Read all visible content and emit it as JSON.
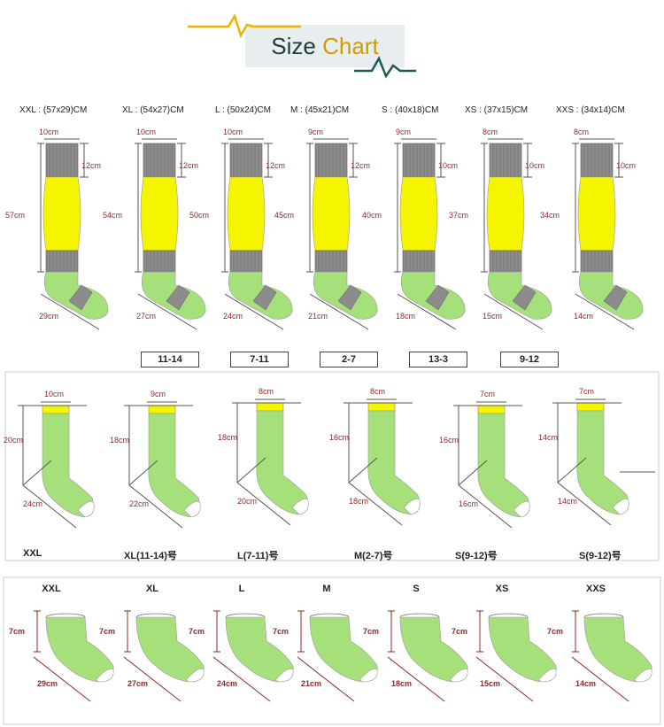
{
  "header": {
    "title_part1": "Size ",
    "title_part2": "Chart"
  },
  "colors": {
    "cuff": "#8c8c8c",
    "leg": "#f5f500",
    "foot": "#a6e07a",
    "dim": "#8b2a2a",
    "accent": "#f0b400",
    "teal": "#1e5a55"
  },
  "knee_socks": [
    {
      "label": "XXL : (57x29)CM",
      "cuff": "10cm",
      "cuff_h": "12cm",
      "height": "57cm",
      "foot": "29cm"
    },
    {
      "label": "XL : (54x27)CM",
      "cuff": "10cm",
      "cuff_h": "12cm",
      "height": "54cm",
      "foot": "27cm"
    },
    {
      "label": "L : (50x24)CM",
      "cuff": "10cm",
      "cuff_h": "12cm",
      "height": "50cm",
      "foot": "24cm"
    },
    {
      "label": "M : (45x21)CM",
      "cuff": "9cm",
      "cuff_h": "12cm",
      "height": "45cm",
      "foot": "21cm"
    },
    {
      "label": "S : (40x18)CM",
      "cuff": "9cm",
      "cuff_h": "10cm",
      "height": "40cm",
      "foot": "18cm"
    },
    {
      "label": "XS : (37x15)CM",
      "cuff": "8cm",
      "cuff_h": "10cm",
      "height": "37cm",
      "foot": "15cm"
    },
    {
      "label": "XXS : (34x14)CM",
      "cuff": "8cm",
      "cuff_h": "10cm",
      "height": "34cm",
      "foot": "14cm"
    }
  ],
  "age_boxes": [
    "11-14",
    "7-11",
    "2-7",
    "13-3",
    "9-12"
  ],
  "crew_socks": [
    {
      "label": "XXL",
      "cuff": "10cm",
      "height": "20cm",
      "foot": "24cm"
    },
    {
      "label": "XL(11-14)号",
      "cuff": "9cm",
      "height": "18cm",
      "foot": "22cm"
    },
    {
      "label": "L(7-11)号",
      "cuff": "8cm",
      "height": "18cm",
      "foot": "20cm"
    },
    {
      "label": "M(2-7)号",
      "cuff": "8cm",
      "height": "16cm",
      "foot": "18cm"
    },
    {
      "label": "S(9-12)号",
      "cuff": "7cm",
      "height": "16cm",
      "foot": "16cm"
    },
    {
      "label": "S(9-12)号",
      "cuff": "7cm",
      "height": "14cm",
      "foot": "14cm"
    }
  ],
  "ankle_socks": [
    {
      "label": "XXL",
      "height": "7cm",
      "foot": "29cm"
    },
    {
      "label": "XL",
      "height": "7cm",
      "foot": "27cm"
    },
    {
      "label": "L",
      "height": "7cm",
      "foot": "24cm"
    },
    {
      "label": "M",
      "height": "7cm",
      "foot": "21cm"
    },
    {
      "label": "S",
      "height": "7cm",
      "foot": "18cm"
    },
    {
      "label": "XS",
      "height": "7cm",
      "foot": "15cm"
    },
    {
      "label": "XXS",
      "height": "7cm",
      "foot": "14cm"
    }
  ]
}
